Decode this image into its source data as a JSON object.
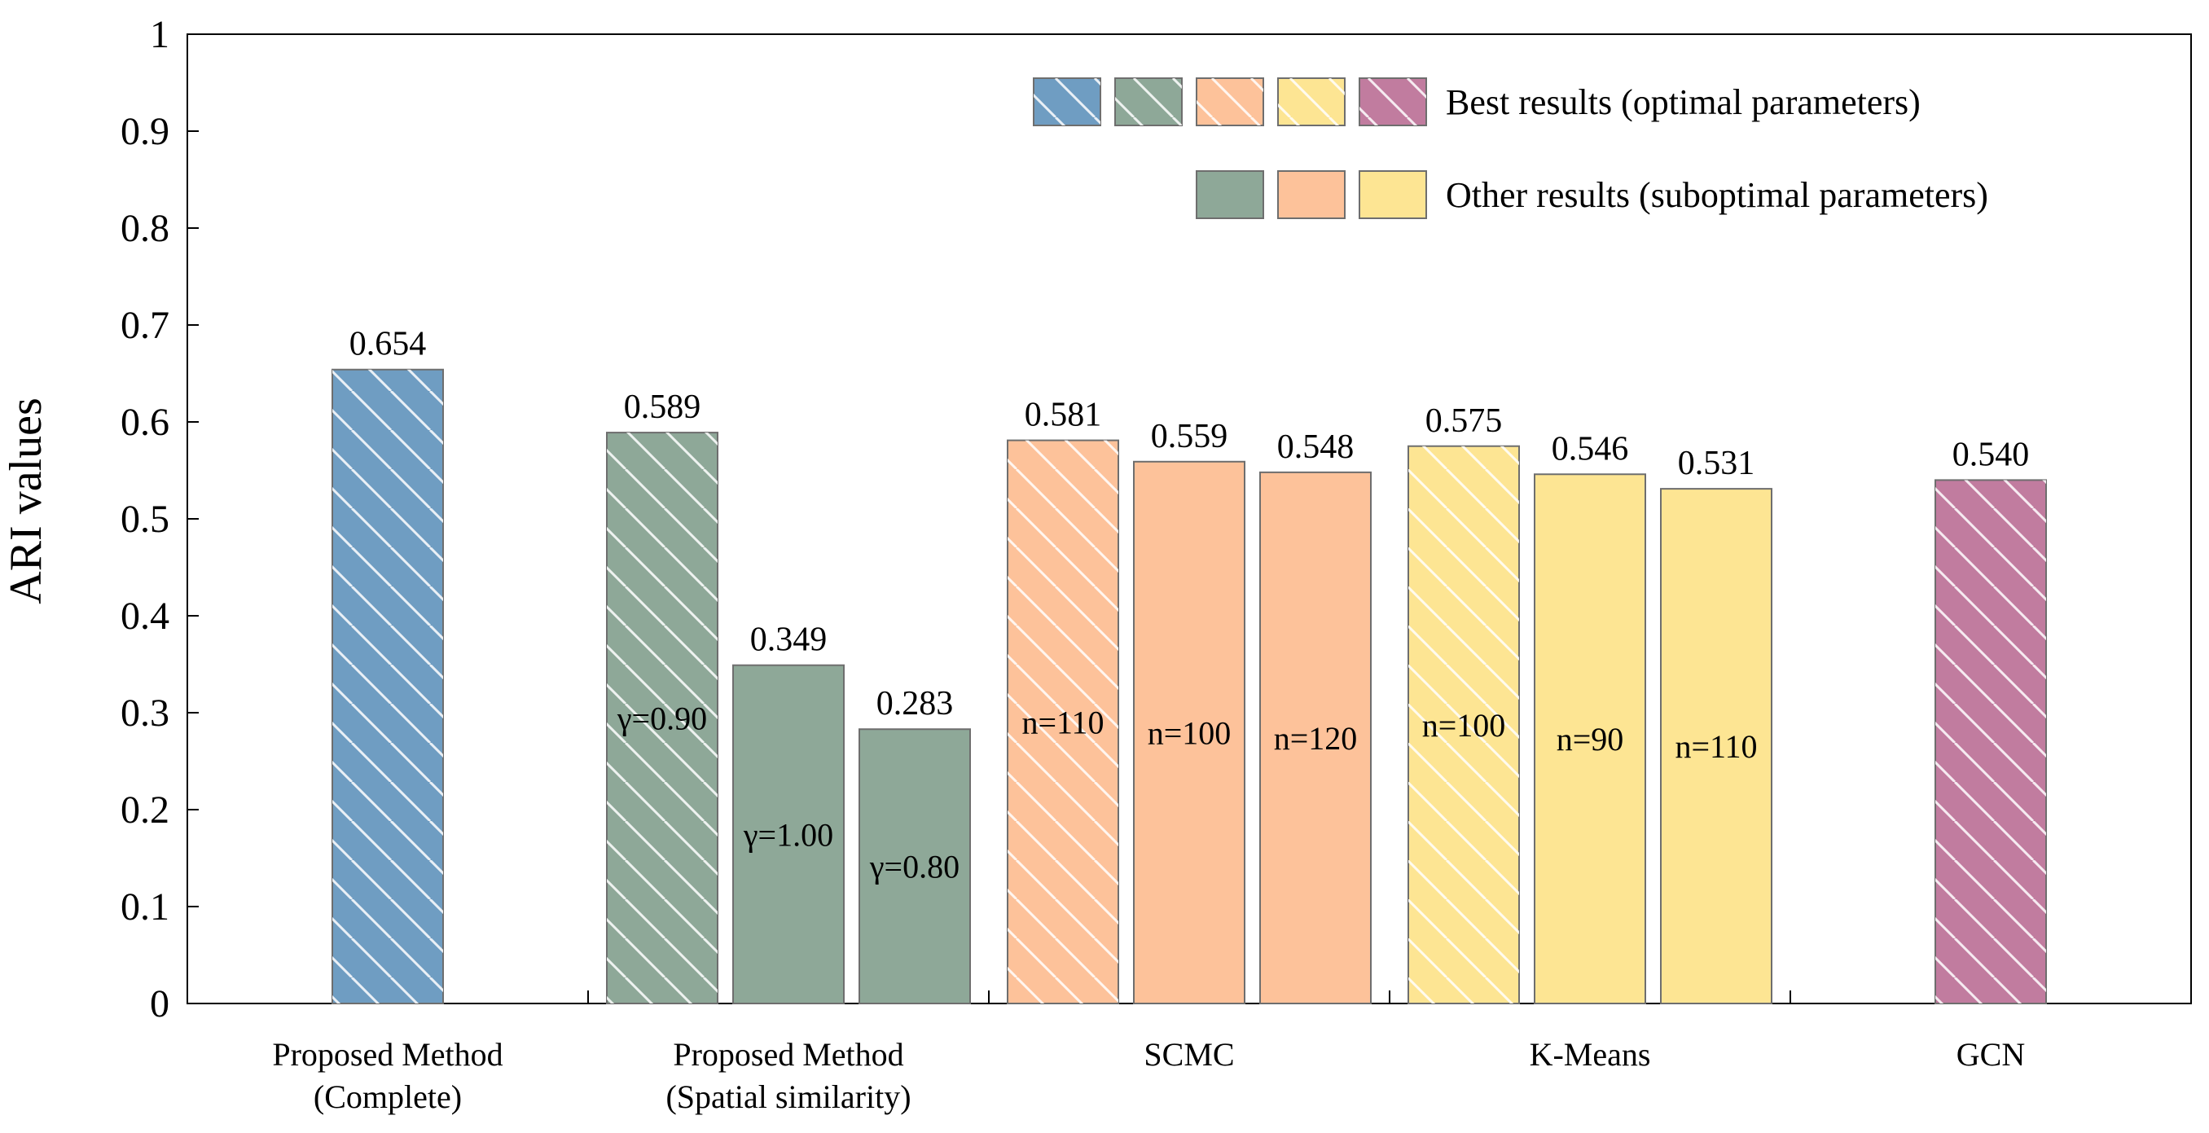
{
  "chart_data": {
    "type": "bar",
    "title": "",
    "xlabel": "",
    "ylabel": "ARI values",
    "ylim": [
      0,
      1
    ],
    "yticks": [
      "0",
      "0.1",
      "0.2",
      "0.3",
      "0.4",
      "0.5",
      "0.6",
      "0.7",
      "0.8",
      "0.9",
      "1"
    ],
    "grid": false,
    "legend_position": "top-right",
    "colors": {
      "blue": "#6f9dc2",
      "green": "#8ea898",
      "orange": "#fdc29a",
      "yellow": "#fde593",
      "magenta": "#c17c9f"
    },
    "legend": [
      {
        "label": "Best results (optimal parameters)",
        "hatched": true,
        "swatches": [
          "blue",
          "green",
          "orange",
          "yellow",
          "magenta"
        ]
      },
      {
        "label": "Other results (suboptimal parameters)",
        "hatched": false,
        "swatches": [
          "green",
          "orange",
          "yellow"
        ]
      }
    ],
    "groups": [
      {
        "category": [
          "Proposed Method",
          "(Complete)"
        ],
        "bars": [
          {
            "value": 0.654,
            "value_label": "0.654",
            "param_label": "",
            "color": "blue",
            "hatched": true
          }
        ]
      },
      {
        "category": [
          "Proposed Method",
          "(Spatial similarity)"
        ],
        "bars": [
          {
            "value": 0.589,
            "value_label": "0.589",
            "param_label": "γ=0.90",
            "color": "green",
            "hatched": true
          },
          {
            "value": 0.349,
            "value_label": "0.349",
            "param_label": "γ=1.00",
            "color": "green",
            "hatched": false
          },
          {
            "value": 0.283,
            "value_label": "0.283",
            "param_label": "γ=0.80",
            "color": "green",
            "hatched": false
          }
        ]
      },
      {
        "category": [
          "SCMC"
        ],
        "bars": [
          {
            "value": 0.581,
            "value_label": "0.581",
            "param_label": "n=110",
            "color": "orange",
            "hatched": true
          },
          {
            "value": 0.559,
            "value_label": "0.559",
            "param_label": "n=100",
            "color": "orange",
            "hatched": false
          },
          {
            "value": 0.548,
            "value_label": "0.548",
            "param_label": "n=120",
            "color": "orange",
            "hatched": false
          }
        ]
      },
      {
        "category": [
          "K-Means"
        ],
        "bars": [
          {
            "value": 0.575,
            "value_label": "0.575",
            "param_label": "n=100",
            "color": "yellow",
            "hatched": true
          },
          {
            "value": 0.546,
            "value_label": "0.546",
            "param_label": "n=90",
            "color": "yellow",
            "hatched": false
          },
          {
            "value": 0.531,
            "value_label": "0.531",
            "param_label": "n=110",
            "color": "yellow",
            "hatched": false
          }
        ]
      },
      {
        "category": [
          "GCN"
        ],
        "bars": [
          {
            "value": 0.54,
            "value_label": "0.540",
            "param_label": "",
            "color": "magenta",
            "hatched": true
          }
        ]
      }
    ]
  }
}
